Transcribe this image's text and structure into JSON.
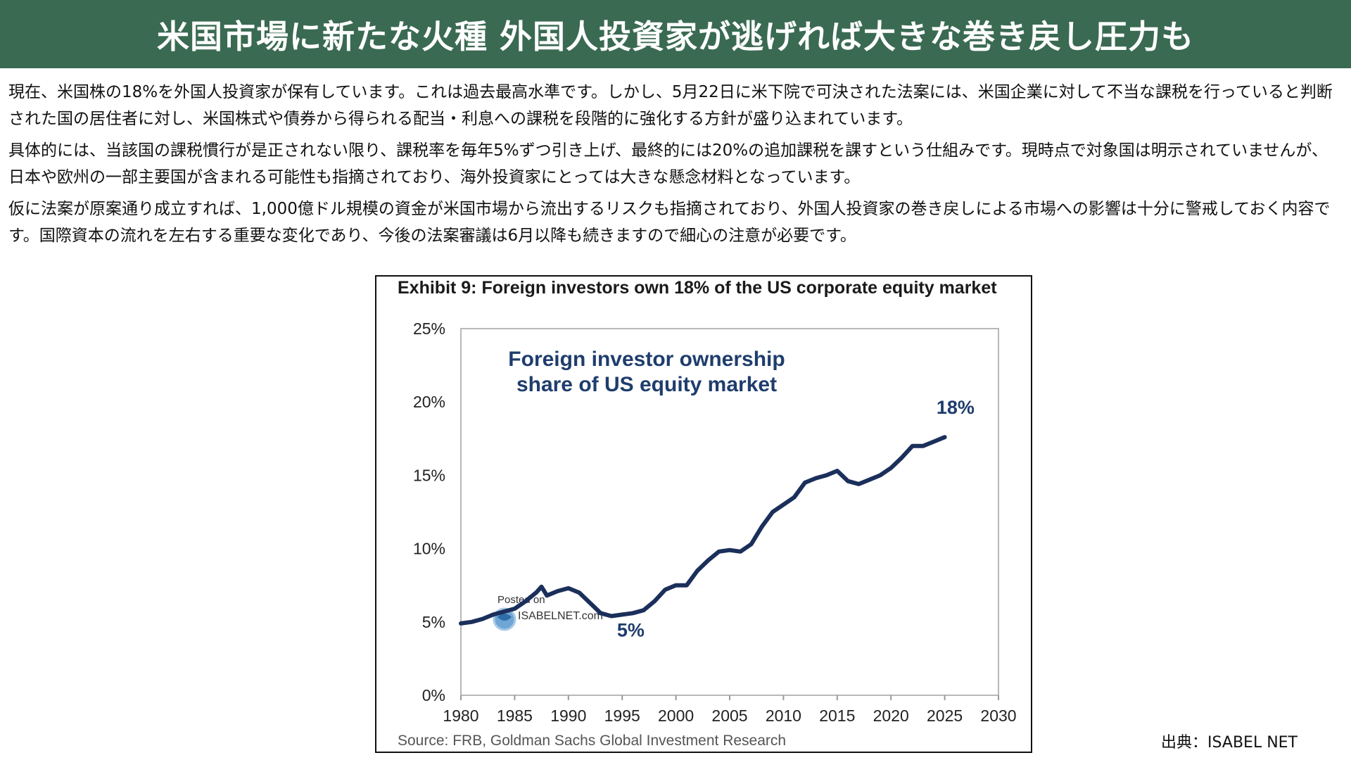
{
  "banner": {
    "title": "米国市場に新たな火種 外国人投資家が逃げれば大きな巻き戻し圧力も",
    "bg_color": "#3a6a52"
  },
  "paragraphs": [
    "現在、米国株の18%を外国人投資家が保有しています。これは過去最高水準です。しかし、5月22日に米下院で可決された法案には、米国企業に対して不当な課税を行っていると判断された国の居住者に対し、米国株式や債券から得られる配当・利息への課税を段階的に強化する方針が盛り込まれています。",
    "具体的には、当該国の課税慣行が是正されない限り、課税率を毎年5%ずつ引き上げ、最終的には20%の追加課税を課すという仕組みです。現時点で対象国は明示されていませんが、日本や欧州の一部主要国が含まれる可能性も指摘されており、海外投資家にとっては大きな懸念材料となっています。",
    "仮に法案が原案通り成立すれば、1,000億ドル規模の資金が米国市場から流出するリスクも指摘されており、外国人投資家の巻き戻しによる市場への影響は十分に警戒しておく内容です。国際資本の流れを左右する重要な変化であり、今後の法案審議は6月以降も続きますので細心の注意が必要です。"
  ],
  "credit": "出典：ISABEL NET",
  "chart_data": {
    "type": "line",
    "title": "Exhibit 9: Foreign investors own 18% of the US corporate equity market",
    "inner_title": [
      "Foreign investor ownership",
      "share of US equity market"
    ],
    "source": "Source: FRB, Goldman Sachs Global Investment Research",
    "watermark": [
      "Posted on",
      "ISABELNET.com"
    ],
    "xlim": [
      1980,
      2030
    ],
    "ylim": [
      0,
      25
    ],
    "x_ticks": [
      1980,
      1985,
      1990,
      1995,
      2000,
      2005,
      2010,
      2015,
      2020,
      2025,
      2030
    ],
    "x_tick_labels": [
      "1980",
      "1985",
      "1990",
      "1995",
      "2000",
      "2005",
      "2010",
      "2015",
      "2020",
      "2025",
      "2030"
    ],
    "y_ticks": [
      0,
      5,
      10,
      15,
      20,
      25
    ],
    "y_tick_labels": [
      "0%",
      "5%",
      "10%",
      "15%",
      "20%",
      "25%"
    ],
    "grid": false,
    "line_color": "#1b2f5b",
    "annotations": [
      {
        "text": "18%",
        "x": 2026,
        "y": 19.2
      },
      {
        "text": "5%",
        "x": 1995.8,
        "y": 4.0
      }
    ],
    "series": [
      {
        "x": [
          1980,
          1981,
          1982,
          1983,
          1984,
          1985,
          1986,
          1987,
          1987.5,
          1988,
          1989,
          1990,
          1991,
          1992,
          1993,
          1994,
          1995,
          1996,
          1997,
          1998,
          1999,
          2000,
          2001,
          2002,
          2003,
          2004,
          2005,
          2006,
          2007,
          2008,
          2009,
          2010,
          2011,
          2012,
          2013,
          2014,
          2015,
          2016,
          2017,
          2018,
          2019,
          2020,
          2021,
          2022,
          2023,
          2024,
          2025
        ],
        "y": [
          4.9,
          5.0,
          5.2,
          5.5,
          5.7,
          5.9,
          6.4,
          7.0,
          7.4,
          6.8,
          7.1,
          7.3,
          7.0,
          6.3,
          5.6,
          5.4,
          5.5,
          5.6,
          5.8,
          6.4,
          7.2,
          7.5,
          7.5,
          8.5,
          9.2,
          9.8,
          9.9,
          9.8,
          10.3,
          11.5,
          12.5,
          13.0,
          13.5,
          14.5,
          14.8,
          15.0,
          15.3,
          14.6,
          14.4,
          14.7,
          15.0,
          15.5,
          16.2,
          17.0,
          17.0,
          17.3,
          17.6
        ]
      }
    ]
  }
}
